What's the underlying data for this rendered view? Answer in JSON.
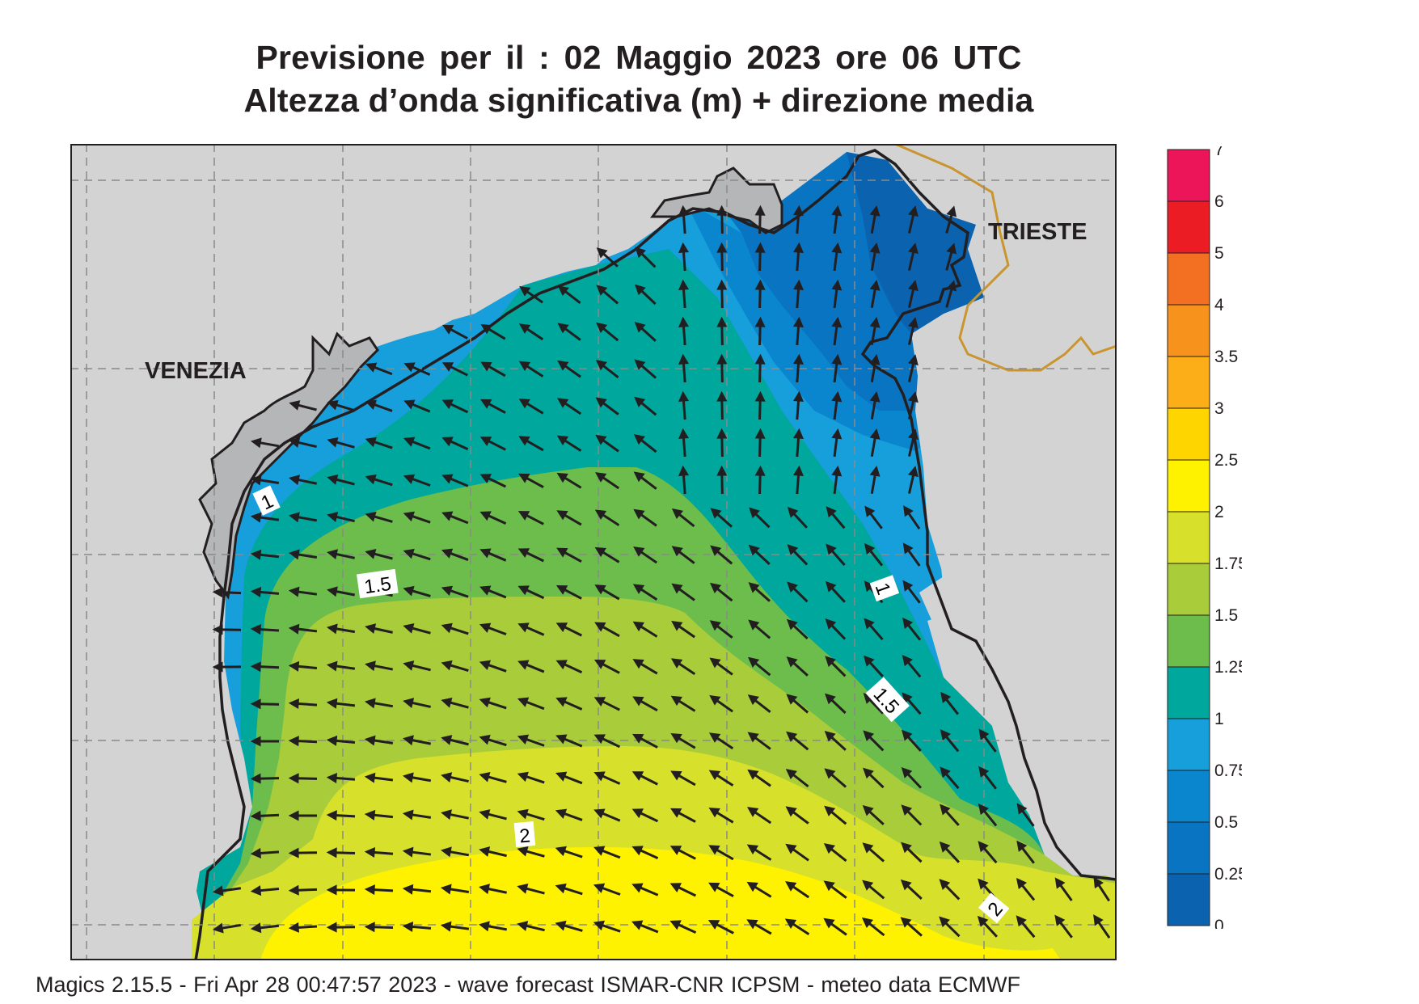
{
  "title": {
    "line1": "Previsione per il  :  02   Maggio  2023   ore 06 UTC",
    "line2": "Altezza d’onda significativa (m) + direzione media"
  },
  "map": {
    "cities": [
      {
        "name": "VENEZIA"
      },
      {
        "name": "TRIESTE"
      }
    ],
    "contour_labels": [
      "1",
      "1.5",
      "1",
      "1.5",
      "2",
      "2"
    ],
    "colors": {
      "land": "#d3d3d4",
      "grid": "#8a8a8a",
      "coast": "#231f20",
      "border": "#c9952f",
      "band_0_025": "#0b63b0",
      "band_025_05": "#0874c2",
      "band_05_075": "#0a86cf",
      "band_075_1": "#179fdc",
      "band_1_125": "#00a79c",
      "band_125_15": "#6cbd4c",
      "band_15_175": "#a8cc3a",
      "band_175_2": "#d7e02b",
      "band_2_25": "#fff200"
    }
  },
  "colorbar": {
    "labels": [
      "7",
      "6",
      "5",
      "4",
      "3.5",
      "3",
      "2.5",
      "2",
      "1.75",
      "1.5",
      "1.25",
      "1",
      "0.75",
      "0.5",
      "0.25",
      "0"
    ],
    "colors": [
      "#ed1559",
      "#ec1c24",
      "#f36f21",
      "#f7931d",
      "#fbae17",
      "#ffd500",
      "#fff200",
      "#d7e02b",
      "#a8cc3a",
      "#6cbd4c",
      "#00a79c",
      "#179fdc",
      "#0a86cf",
      "#0874c2",
      "#0b63b0"
    ]
  },
  "footer": {
    "text": "Magics 2.15.5 - Fri Apr 28 00:47:57 2023 - wave forecast  ISMAR-CNR  ICPSM - meteo data   ECMWF"
  }
}
